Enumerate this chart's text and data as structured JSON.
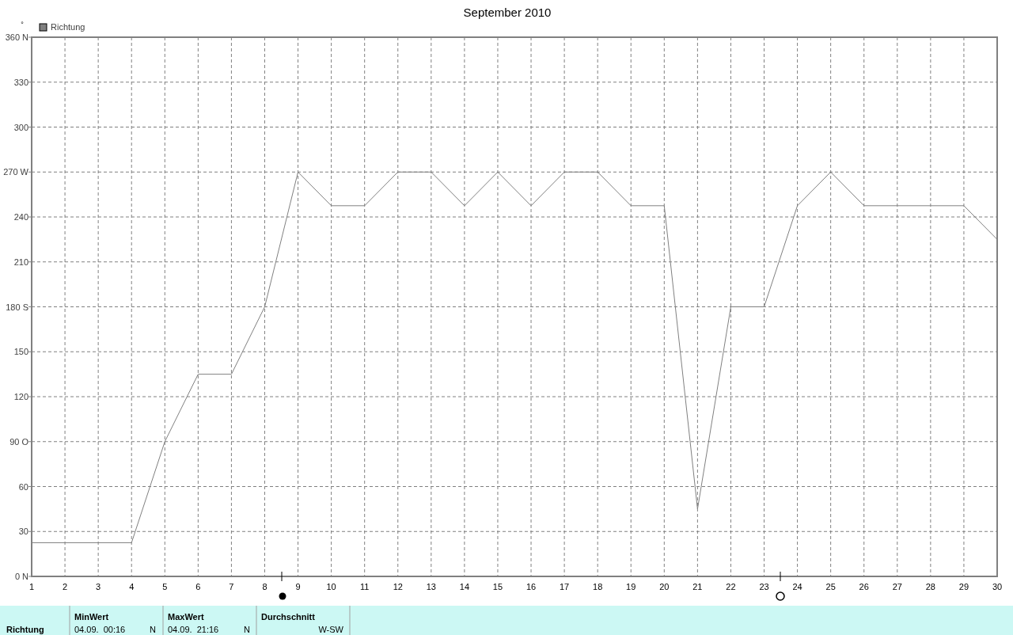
{
  "chart_data": {
    "type": "line",
    "title": "September 2010",
    "ylabel": "°",
    "x": [
      1,
      2,
      3,
      4,
      5,
      6,
      7,
      8,
      9,
      10,
      11,
      12,
      13,
      14,
      15,
      16,
      17,
      18,
      19,
      20,
      21,
      22,
      23,
      24,
      25,
      26,
      27,
      28,
      29,
      30
    ],
    "series": [
      {
        "name": "Richtung",
        "color": "#808080",
        "values": [
          22.5,
          22.5,
          22.5,
          22.5,
          90,
          135,
          135,
          180,
          270,
          247.5,
          247.5,
          270,
          270,
          247.5,
          270,
          247.5,
          270,
          270,
          247.5,
          247.5,
          45,
          180,
          180,
          247.5,
          270,
          247.5,
          247.5,
          247.5,
          247.5,
          225
        ]
      }
    ],
    "xlim": [
      1,
      30
    ],
    "xticks": [
      1,
      2,
      3,
      4,
      5,
      6,
      7,
      8,
      9,
      10,
      11,
      12,
      13,
      14,
      15,
      16,
      17,
      18,
      19,
      20,
      21,
      22,
      23,
      24,
      25,
      26,
      27,
      28,
      29,
      30
    ],
    "ylim": [
      0,
      360
    ],
    "yticks": [
      {
        "value": 0,
        "label": "0 N"
      },
      30,
      60,
      {
        "value": 90,
        "label": "90 O"
      },
      120,
      150,
      {
        "value": 180,
        "label": "180 S"
      },
      210,
      240,
      {
        "value": 270,
        "label": "270 W"
      },
      300,
      330,
      {
        "value": 360,
        "label": "360 N"
      }
    ],
    "grid": true,
    "legend": "top left",
    "marker": "none",
    "line_style": "solid",
    "annotations": [
      "Richtung",
      "MinWert",
      "04.09.  00:16",
      "N",
      "MaxWert",
      "04.09.  21:16",
      "N",
      "Durchschnitt",
      "W-SW"
    ]
  }
}
